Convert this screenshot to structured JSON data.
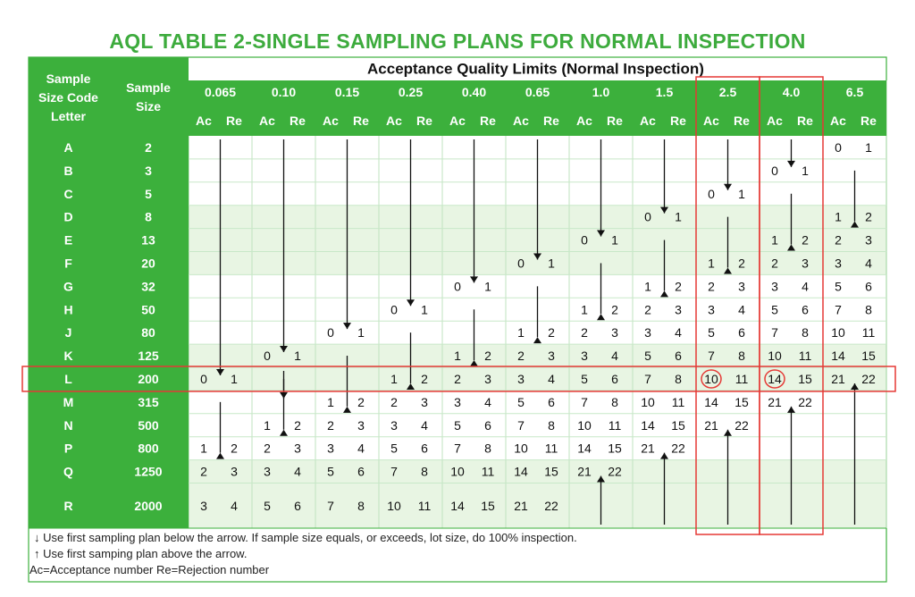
{
  "title": "AQL TABLE 2-SINGLE SAMPLING PLANS FOR NORMAL INSPECTION",
  "header": {
    "code_letter": [
      "Sample",
      "Size Code",
      "Letter"
    ],
    "sample_size": [
      "Sample",
      "Size"
    ],
    "aql_title": "Acceptance Quality Limits  (Normal Inspection)",
    "ac": "Ac",
    "re": "Re"
  },
  "aql_levels": [
    "0.065",
    "0.10",
    "0.15",
    "0.25",
    "0.40",
    "0.65",
    "1.0",
    "1.5",
    "2.5",
    "4.0",
    "6.5"
  ],
  "rows": [
    {
      "letter": "A",
      "size": "2"
    },
    {
      "letter": "B",
      "size": "3"
    },
    {
      "letter": "C",
      "size": "5"
    },
    {
      "letter": "D",
      "size": "8"
    },
    {
      "letter": "E",
      "size": "13"
    },
    {
      "letter": "F",
      "size": "20"
    },
    {
      "letter": "G",
      "size": "32"
    },
    {
      "letter": "H",
      "size": "50"
    },
    {
      "letter": "J",
      "size": "80"
    },
    {
      "letter": "K",
      "size": "125"
    },
    {
      "letter": "L",
      "size": "200"
    },
    {
      "letter": "M",
      "size": "315"
    },
    {
      "letter": "N",
      "size": "500"
    },
    {
      "letter": "P",
      "size": "800"
    },
    {
      "letter": "Q",
      "size": "1250"
    },
    {
      "letter": "R",
      "size": "2000"
    }
  ],
  "cells": [
    {
      "r": 10,
      "c": 0,
      "ac": "0",
      "re": "1"
    },
    {
      "r": 13,
      "c": 0,
      "ac": "1",
      "re": "2"
    },
    {
      "r": 14,
      "c": 0,
      "ac": "2",
      "re": "3"
    },
    {
      "r": 15,
      "c": 0,
      "ac": "3",
      "re": "4"
    },
    {
      "r": 9,
      "c": 1,
      "ac": "0",
      "re": "1"
    },
    {
      "r": 12,
      "c": 1,
      "ac": "1",
      "re": "2"
    },
    {
      "r": 13,
      "c": 1,
      "ac": "2",
      "re": "3"
    },
    {
      "r": 14,
      "c": 1,
      "ac": "3",
      "re": "4"
    },
    {
      "r": 15,
      "c": 1,
      "ac": "5",
      "re": "6"
    },
    {
      "r": 8,
      "c": 2,
      "ac": "0",
      "re": "1"
    },
    {
      "r": 11,
      "c": 2,
      "ac": "1",
      "re": "2"
    },
    {
      "r": 12,
      "c": 2,
      "ac": "2",
      "re": "3"
    },
    {
      "r": 13,
      "c": 2,
      "ac": "3",
      "re": "4"
    },
    {
      "r": 14,
      "c": 2,
      "ac": "5",
      "re": "6"
    },
    {
      "r": 15,
      "c": 2,
      "ac": "7",
      "re": "8"
    },
    {
      "r": 7,
      "c": 3,
      "ac": "0",
      "re": "1"
    },
    {
      "r": 10,
      "c": 3,
      "ac": "1",
      "re": "2"
    },
    {
      "r": 11,
      "c": 3,
      "ac": "2",
      "re": "3"
    },
    {
      "r": 12,
      "c": 3,
      "ac": "3",
      "re": "4"
    },
    {
      "r": 13,
      "c": 3,
      "ac": "5",
      "re": "6"
    },
    {
      "r": 14,
      "c": 3,
      "ac": "7",
      "re": "8"
    },
    {
      "r": 15,
      "c": 3,
      "ac": "10",
      "re": "11"
    },
    {
      "r": 6,
      "c": 4,
      "ac": "0",
      "re": "1"
    },
    {
      "r": 9,
      "c": 4,
      "ac": "1",
      "re": "2"
    },
    {
      "r": 10,
      "c": 4,
      "ac": "2",
      "re": "3"
    },
    {
      "r": 11,
      "c": 4,
      "ac": "3",
      "re": "4"
    },
    {
      "r": 12,
      "c": 4,
      "ac": "5",
      "re": "6"
    },
    {
      "r": 13,
      "c": 4,
      "ac": "7",
      "re": "8"
    },
    {
      "r": 14,
      "c": 4,
      "ac": "10",
      "re": "11"
    },
    {
      "r": 15,
      "c": 4,
      "ac": "14",
      "re": "15"
    },
    {
      "r": 5,
      "c": 5,
      "ac": "0",
      "re": "1"
    },
    {
      "r": 8,
      "c": 5,
      "ac": "1",
      "re": "2"
    },
    {
      "r": 9,
      "c": 5,
      "ac": "2",
      "re": "3"
    },
    {
      "r": 10,
      "c": 5,
      "ac": "3",
      "re": "4"
    },
    {
      "r": 11,
      "c": 5,
      "ac": "5",
      "re": "6"
    },
    {
      "r": 12,
      "c": 5,
      "ac": "7",
      "re": "8"
    },
    {
      "r": 13,
      "c": 5,
      "ac": "10",
      "re": "11"
    },
    {
      "r": 14,
      "c": 5,
      "ac": "14",
      "re": "15"
    },
    {
      "r": 15,
      "c": 5,
      "ac": "21",
      "re": "22"
    },
    {
      "r": 4,
      "c": 6,
      "ac": "0",
      "re": "1"
    },
    {
      "r": 7,
      "c": 6,
      "ac": "1",
      "re": "2"
    },
    {
      "r": 8,
      "c": 6,
      "ac": "2",
      "re": "3"
    },
    {
      "r": 9,
      "c": 6,
      "ac": "3",
      "re": "4"
    },
    {
      "r": 10,
      "c": 6,
      "ac": "5",
      "re": "6"
    },
    {
      "r": 11,
      "c": 6,
      "ac": "7",
      "re": "8"
    },
    {
      "r": 12,
      "c": 6,
      "ac": "10",
      "re": "11"
    },
    {
      "r": 13,
      "c": 6,
      "ac": "14",
      "re": "15"
    },
    {
      "r": 14,
      "c": 6,
      "ac": "21",
      "re": "22"
    },
    {
      "r": 3,
      "c": 7,
      "ac": "0",
      "re": "1"
    },
    {
      "r": 6,
      "c": 7,
      "ac": "1",
      "re": "2"
    },
    {
      "r": 7,
      "c": 7,
      "ac": "2",
      "re": "3"
    },
    {
      "r": 8,
      "c": 7,
      "ac": "3",
      "re": "4"
    },
    {
      "r": 9,
      "c": 7,
      "ac": "5",
      "re": "6"
    },
    {
      "r": 10,
      "c": 7,
      "ac": "7",
      "re": "8"
    },
    {
      "r": 11,
      "c": 7,
      "ac": "10",
      "re": "11"
    },
    {
      "r": 12,
      "c": 7,
      "ac": "14",
      "re": "15"
    },
    {
      "r": 13,
      "c": 7,
      "ac": "21",
      "re": "22"
    },
    {
      "r": 2,
      "c": 8,
      "ac": "0",
      "re": "1"
    },
    {
      "r": 5,
      "c": 8,
      "ac": "1",
      "re": "2"
    },
    {
      "r": 6,
      "c": 8,
      "ac": "2",
      "re": "3"
    },
    {
      "r": 7,
      "c": 8,
      "ac": "3",
      "re": "4"
    },
    {
      "r": 8,
      "c": 8,
      "ac": "5",
      "re": "6"
    },
    {
      "r": 9,
      "c": 8,
      "ac": "7",
      "re": "8"
    },
    {
      "r": 10,
      "c": 8,
      "ac": "10",
      "re": "11",
      "circle": true
    },
    {
      "r": 11,
      "c": 8,
      "ac": "14",
      "re": "15"
    },
    {
      "r": 12,
      "c": 8,
      "ac": "21",
      "re": "22"
    },
    {
      "r": 1,
      "c": 9,
      "ac": "0",
      "re": "1"
    },
    {
      "r": 4,
      "c": 9,
      "ac": "1",
      "re": "2"
    },
    {
      "r": 5,
      "c": 9,
      "ac": "2",
      "re": "3"
    },
    {
      "r": 6,
      "c": 9,
      "ac": "3",
      "re": "4"
    },
    {
      "r": 7,
      "c": 9,
      "ac": "5",
      "re": "6"
    },
    {
      "r": 8,
      "c": 9,
      "ac": "7",
      "re": "8"
    },
    {
      "r": 9,
      "c": 9,
      "ac": "10",
      "re": "11"
    },
    {
      "r": 10,
      "c": 9,
      "ac": "14",
      "re": "15",
      "circle": true
    },
    {
      "r": 11,
      "c": 9,
      "ac": "21",
      "re": "22"
    },
    {
      "r": 0,
      "c": 10,
      "ac": "0",
      "re": "1"
    },
    {
      "r": 3,
      "c": 10,
      "ac": "1",
      "re": "2"
    },
    {
      "r": 4,
      "c": 10,
      "ac": "2",
      "re": "3"
    },
    {
      "r": 5,
      "c": 10,
      "ac": "3",
      "re": "4"
    },
    {
      "r": 6,
      "c": 10,
      "ac": "5",
      "re": "6"
    },
    {
      "r": 7,
      "c": 10,
      "ac": "7",
      "re": "8"
    },
    {
      "r": 8,
      "c": 10,
      "ac": "10",
      "re": "11"
    },
    {
      "r": 9,
      "c": 10,
      "ac": "14",
      "re": "15"
    },
    {
      "r": 10,
      "c": 10,
      "ac": "21",
      "re": "22"
    }
  ],
  "arrows": [
    {
      "c": 0,
      "from": 0,
      "to": 10,
      "dir": "down"
    },
    {
      "c": 0,
      "from": 11,
      "to": 13,
      "dir": "up"
    },
    {
      "c": 1,
      "from": 0,
      "to": 9,
      "dir": "down"
    },
    {
      "c": 1,
      "from": 10,
      "to": 12,
      "dir": "up"
    },
    {
      "c": 1,
      "from": 10,
      "to": 11,
      "dir": "down"
    },
    {
      "c": 2,
      "from": 0,
      "to": 8,
      "dir": "down"
    },
    {
      "c": 2,
      "from": 9,
      "to": 11,
      "dir": "up"
    },
    {
      "c": 3,
      "from": 0,
      "to": 7,
      "dir": "down"
    },
    {
      "c": 3,
      "from": 8,
      "to": 10,
      "dir": "up"
    },
    {
      "c": 4,
      "from": 0,
      "to": 6,
      "dir": "down"
    },
    {
      "c": 4,
      "from": 7,
      "to": 9,
      "dir": "up"
    },
    {
      "c": 5,
      "from": 0,
      "to": 5,
      "dir": "down"
    },
    {
      "c": 5,
      "from": 6,
      "to": 8,
      "dir": "up"
    },
    {
      "c": 6,
      "from": 0,
      "to": 4,
      "dir": "down"
    },
    {
      "c": 6,
      "from": 5,
      "to": 7,
      "dir": "up"
    },
    {
      "c": 6,
      "from": 15,
      "to": 14,
      "dir": "up"
    },
    {
      "c": 7,
      "from": 0,
      "to": 3,
      "dir": "down"
    },
    {
      "c": 7,
      "from": 4,
      "to": 6,
      "dir": "up"
    },
    {
      "c": 7,
      "from": 15,
      "to": 13,
      "dir": "up"
    },
    {
      "c": 8,
      "from": 0,
      "to": 2,
      "dir": "down"
    },
    {
      "c": 8,
      "from": 3,
      "to": 5,
      "dir": "up"
    },
    {
      "c": 8,
      "from": 15,
      "to": 12,
      "dir": "up"
    },
    {
      "c": 9,
      "from": 0,
      "to": 1,
      "dir": "down"
    },
    {
      "c": 9,
      "from": 2,
      "to": 4,
      "dir": "up"
    },
    {
      "c": 9,
      "from": 15,
      "to": 11,
      "dir": "up"
    },
    {
      "c": 10,
      "from": 1,
      "to": 3,
      "dir": "up"
    },
    {
      "c": 10,
      "from": 15,
      "to": 10,
      "dir": "up"
    }
  ],
  "notes": {
    "down": "Use first sampling plan below the arrow. If sample size equals, or exceeds, lot size, do 100% inspection.",
    "up": "Use first samping plan above the arrow.",
    "legend": "Ac=Acceptance number  Re=Rejection number"
  },
  "colors": {
    "green": "#3cb03c",
    "light_band": "#e8f5e3",
    "title": "#3dab3d",
    "highlight": "#e53935"
  }
}
